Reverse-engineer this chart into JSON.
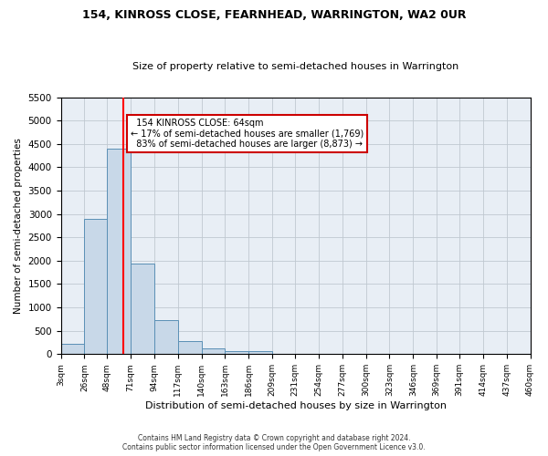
{
  "title": "154, KINROSS CLOSE, FEARNHEAD, WARRINGTON, WA2 0UR",
  "subtitle": "Size of property relative to semi-detached houses in Warrington",
  "xlabel": "Distribution of semi-detached houses by size in Warrington",
  "ylabel": "Number of semi-detached properties",
  "footer_line1": "Contains HM Land Registry data © Crown copyright and database right 2024.",
  "footer_line2": "Contains public sector information licensed under the Open Government Licence v3.0.",
  "property_size": 64,
  "property_label": "154 KINROSS CLOSE: 64sqm",
  "smaller_pct": 17,
  "smaller_count": 1769,
  "larger_pct": 83,
  "larger_count": 8873,
  "bin_edges": [
    3,
    26,
    48,
    71,
    94,
    117,
    140,
    163,
    186,
    209,
    231,
    254,
    277,
    300,
    323,
    346,
    369,
    391,
    414,
    437,
    460
  ],
  "bar_heights": [
    220,
    2900,
    4400,
    1940,
    730,
    280,
    115,
    75,
    60,
    0,
    0,
    0,
    0,
    0,
    0,
    0,
    0,
    0,
    0,
    0
  ],
  "bar_color": "#c8d8e8",
  "bar_edge_color": "#5a8fb5",
  "red_line_x": 64,
  "annotation_box_color": "#ffffff",
  "annotation_box_edge": "#cc0000",
  "ylim": [
    0,
    5500
  ],
  "background_color": "#ffffff",
  "plot_bg_color": "#e8eef5",
  "grid_color": "#c0c8d0"
}
